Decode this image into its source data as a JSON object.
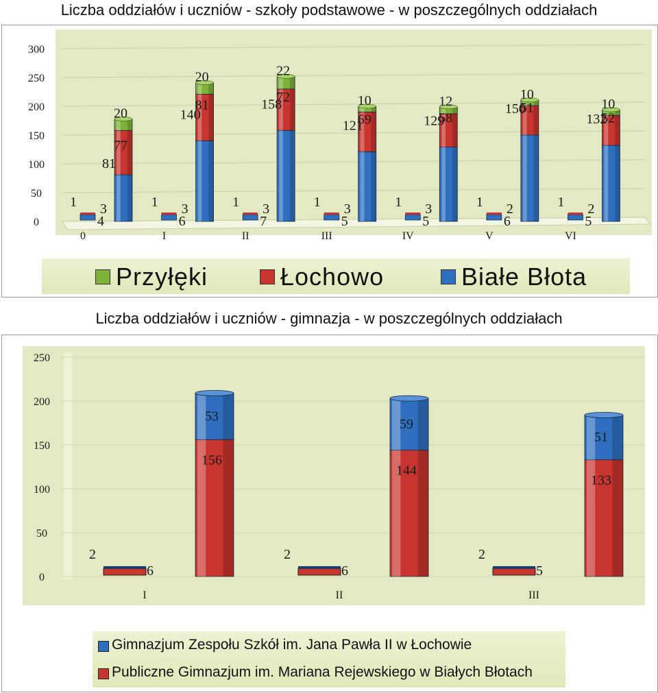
{
  "chart1_title": "Liczba oddziałów i uczniów - szkoły podstawowe - w poszczególnych oddziałach",
  "chart2_title": "Liczba oddziałów i uczniów - gimnazja - w poszczególnych oddziałach",
  "colors": {
    "green": "#7fb23a",
    "red": "#c8352e",
    "blue": "#2f6fc0",
    "plot_bg": "#e3e9c3",
    "legend_bg": "#e6edc4"
  },
  "chart_data": [
    {
      "type": "bar",
      "stacked": true,
      "categories": [
        "0",
        "I",
        "II",
        "III",
        "IV",
        "V",
        "VI"
      ],
      "ylim": [
        0,
        300
      ],
      "yticks": [
        0,
        50,
        100,
        150,
        200,
        250,
        300
      ],
      "grid": true,
      "legend_position": "bottom",
      "series": [
        {
          "name": "Przyłęki",
          "color": "#7fb23a"
        },
        {
          "name": "Łochowo",
          "color": "#c8352e"
        },
        {
          "name": "Białe Błota",
          "color": "#2f6fc0"
        }
      ],
      "groups": [
        {
          "category": "0",
          "small": {
            "top": "1",
            "mid": "3",
            "bottom": "4"
          },
          "blue": 81,
          "red": 77,
          "green": 20
        },
        {
          "category": "I",
          "small": {
            "top": "1",
            "mid": "3",
            "bottom": "6"
          },
          "blue": 140,
          "red": 81,
          "green": 20
        },
        {
          "category": "II",
          "small": {
            "top": "1",
            "mid": "3",
            "bottom": "7"
          },
          "blue": 158,
          "red": 72,
          "green": 22
        },
        {
          "category": "III",
          "small": {
            "top": "1",
            "mid": "3",
            "bottom": "5"
          },
          "blue": 121,
          "red": 69,
          "green": 10
        },
        {
          "category": "IV",
          "small": {
            "top": "1",
            "mid": "3",
            "bottom": "5"
          },
          "blue": 129,
          "red": 58,
          "green": 12
        },
        {
          "category": "V",
          "small": {
            "top": "1",
            "mid": "2",
            "bottom": "6"
          },
          "blue": 150,
          "red": 51,
          "green": 10
        },
        {
          "category": "VI",
          "small": {
            "top": "1",
            "mid": "2",
            "bottom": "5"
          },
          "blue": 132,
          "red": 52,
          "green": 10
        }
      ]
    },
    {
      "type": "bar",
      "stacked": true,
      "categories": [
        "I",
        "II",
        "III"
      ],
      "ylim": [
        0,
        250
      ],
      "yticks": [
        0,
        50,
        100,
        150,
        200,
        250
      ],
      "grid": true,
      "legend_position": "bottom",
      "series": [
        {
          "name": "Gimnazjum Zespołu Szkół im. Jana Pawła II w Łochowie",
          "color": "#2f6fc0"
        },
        {
          "name": "Publiczne Gimnazjum im. Mariana Rejewskiego w Białych Błotach",
          "color": "#c8352e"
        }
      ],
      "groups": [
        {
          "category": "I",
          "small": {
            "top": "2",
            "bottom": "6"
          },
          "red": 156,
          "blue": 53
        },
        {
          "category": "II",
          "small": {
            "top": "2",
            "bottom": "6"
          },
          "red": 144,
          "blue": 59
        },
        {
          "category": "III",
          "small": {
            "top": "2",
            "bottom": "5"
          },
          "red": 133,
          "blue": 51
        }
      ]
    }
  ]
}
